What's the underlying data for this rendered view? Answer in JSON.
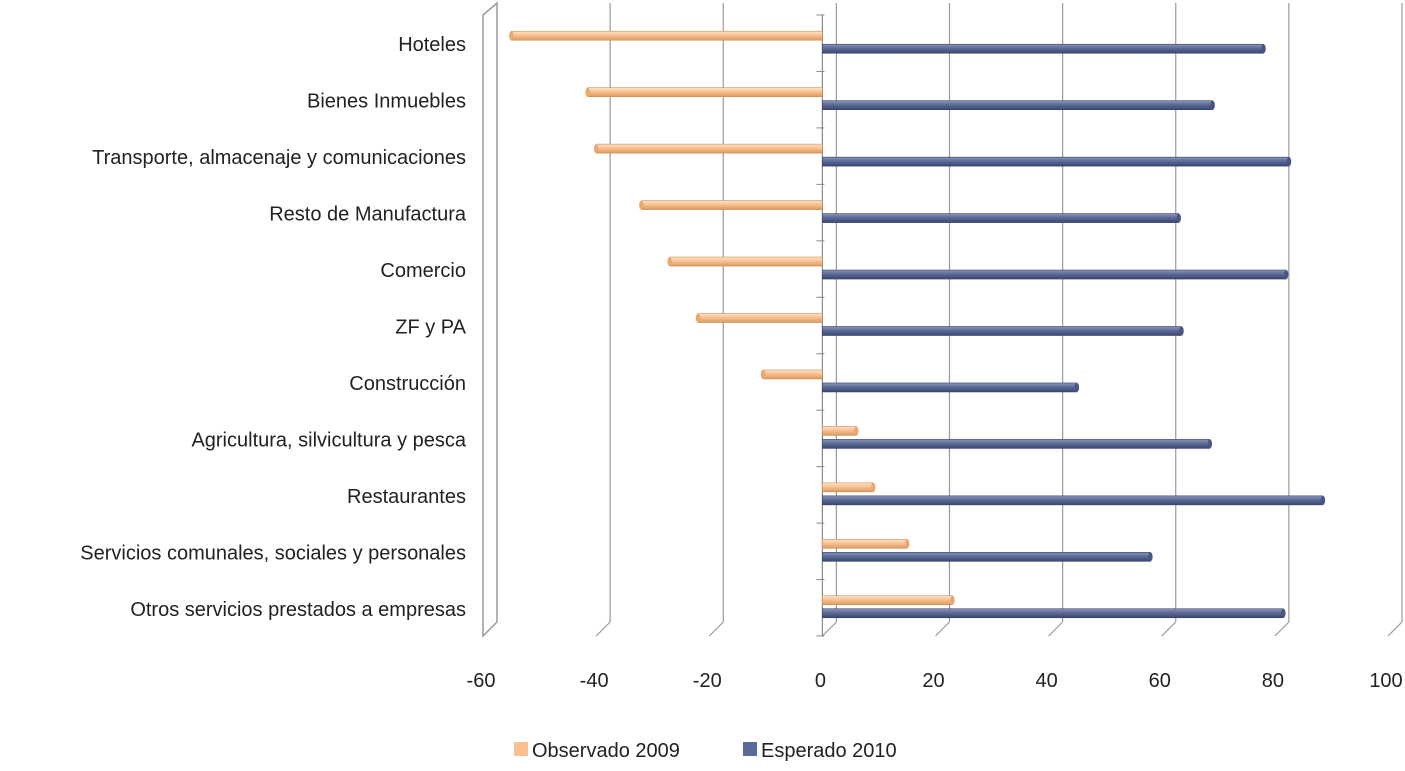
{
  "chart_data": {
    "type": "bar",
    "orientation": "horizontal",
    "categories": [
      "Hoteles",
      "Bienes Inmuebles",
      "Transporte, almacenaje y comunicaciones",
      "Resto de Manufactura",
      "Comercio",
      "ZF y PA",
      "Construcción",
      "Agricultura, silvicultura y pesca",
      "Restaurantes",
      "Servicios comunales, sociales y personales",
      "Otros servicios prestados a empresas"
    ],
    "series": [
      {
        "name": "Observado 2009",
        "color": "#FAC090",
        "values": [
          -55,
          -41.5,
          -40,
          -32,
          -27,
          -22,
          -10.5,
          6,
          9,
          15,
          23
        ]
      },
      {
        "name": "Esperado 2010",
        "color": "#5B6A96",
        "values": [
          78,
          69,
          82.5,
          63,
          82,
          63.5,
          45,
          68.5,
          88.5,
          58,
          81.5
        ]
      }
    ],
    "x_ticks": [
      "-60",
      "-40",
      "-20",
      "0",
      "20",
      "40",
      "60",
      "80",
      "100"
    ],
    "xlim": [
      -60,
      100
    ],
    "grid": true,
    "legend_position": "bottom",
    "style": "3d"
  }
}
